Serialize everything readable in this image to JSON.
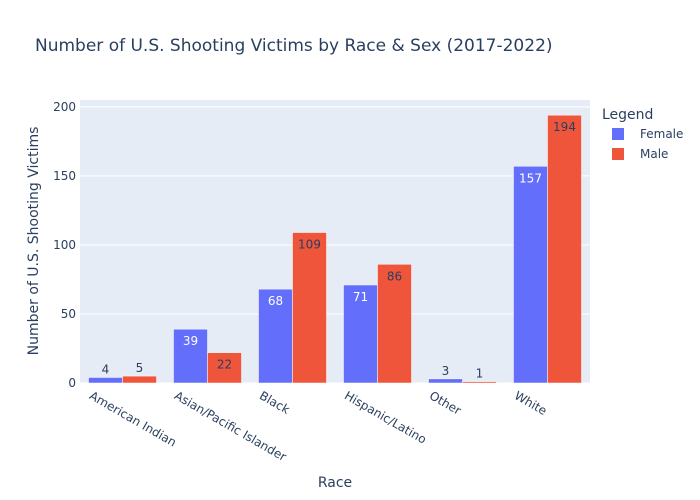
{
  "chart_data": {
    "type": "bar",
    "title": "Number of U.S. Shooting Victims by Race & Sex (2017-2022)",
    "xlabel": "Race",
    "ylabel": "Number of U.S. Shooting Victims",
    "categories": [
      "American Indian",
      "Asian/Pacific Islander",
      "Black",
      "Hispanic/Latino",
      "Other",
      "White"
    ],
    "series": [
      {
        "name": "Female",
        "color": "#636efa",
        "values": [
          4,
          39,
          68,
          71,
          3,
          157
        ]
      },
      {
        "name": "Male",
        "color": "#ef553b",
        "values": [
          5,
          22,
          109,
          86,
          1,
          194
        ]
      }
    ],
    "ylim": [
      0,
      205
    ],
    "yticks": [
      0,
      50,
      100,
      150,
      200
    ],
    "legend": {
      "title": "Legend",
      "placement": "right"
    },
    "grid": true,
    "plot_bg": "#e5ecf6"
  }
}
